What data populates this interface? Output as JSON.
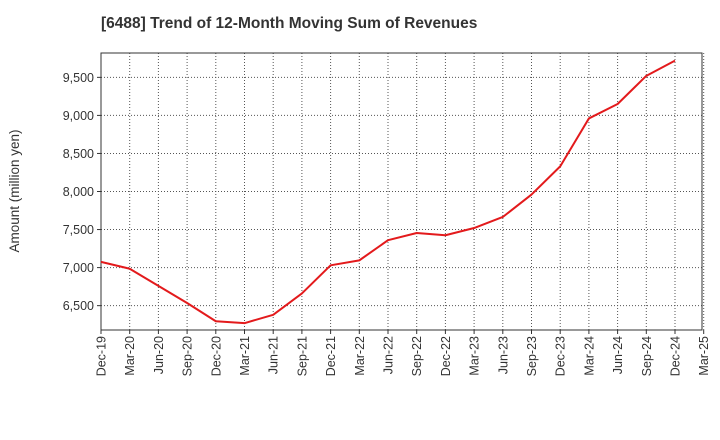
{
  "chart_data": {
    "type": "line",
    "title": "[6488]  Trend of 12-Month Moving Sum of Revenues",
    "ylabel": "Amount (million yen)",
    "xlabel": "",
    "ylim": [
      6180,
      9820
    ],
    "yticks": [
      6500,
      7000,
      7500,
      8000,
      8500,
      9000,
      9500
    ],
    "ytick_labels": [
      "6,500",
      "7,000",
      "7,500",
      "8,000",
      "8,500",
      "9,000",
      "9,500"
    ],
    "categories": [
      "Dec-19",
      "Mar-20",
      "Jun-20",
      "Sep-20",
      "Dec-20",
      "Mar-21",
      "Jun-21",
      "Sep-21",
      "Dec-21",
      "Mar-22",
      "Jun-22",
      "Sep-22",
      "Dec-22",
      "Mar-23",
      "Jun-23",
      "Sep-23",
      "Dec-23",
      "Mar-24",
      "Jun-24",
      "Sep-24",
      "Dec-24",
      "Mar-25"
    ],
    "series": [
      {
        "color": "#e31a1c",
        "values": [
          7075,
          6985,
          6760,
          6535,
          6295,
          6270,
          6380,
          6660,
          7030,
          7095,
          7360,
          7455,
          7425,
          7520,
          7665,
          7960,
          8330,
          8960,
          9150,
          9520,
          9720,
          null
        ]
      }
    ],
    "grid": true,
    "gridline_style": "dotted"
  }
}
